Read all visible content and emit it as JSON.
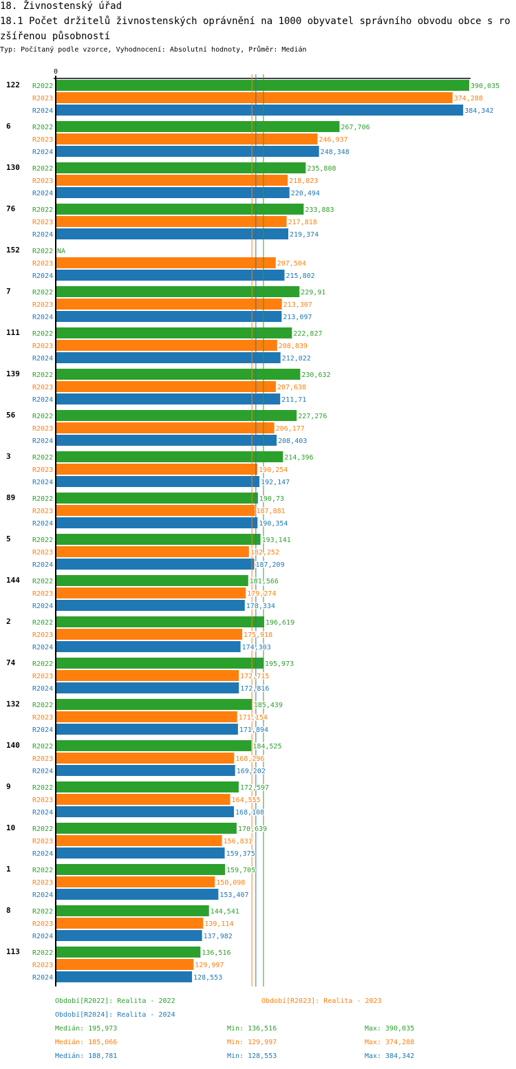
{
  "header": {
    "title": "18. Živnostenský úřad",
    "subtitle": "18.1 Počet držitelů živnostenských oprávnění na 1000 obyvatel správního obvodu obce s rozšířenou působností",
    "type_line": "Typ: Počítaný podle vzorce, Vyhodnocení: Absolutní hodnoty, Průměr: Medián"
  },
  "colors": {
    "R2022": "#2ca02c",
    "R2023": "#ff7f0e",
    "R2024": "#1f77b4"
  },
  "chart_data": {
    "type": "bar",
    "orientation": "horizontal",
    "title": "18.1 Počet držitelů živnostenských oprávnění na 1000 obyvatel správního obvodu obce s rozšířenou působností",
    "xlabel": "",
    "ylabel": "",
    "x_tick_labels": [
      "0"
    ],
    "xlim": [
      0,
      390.035
    ],
    "grid": false,
    "categories": [
      "122",
      "6",
      "130",
      "76",
      "152",
      "7",
      "111",
      "139",
      "56",
      "3",
      "89",
      "5",
      "144",
      "2",
      "74",
      "132",
      "140",
      "9",
      "10",
      "1",
      "8",
      "113"
    ],
    "series": [
      {
        "name": "R2022",
        "values": [
          390.035,
          267.706,
          235.808,
          233.883,
          null,
          229.91,
          222.827,
          230.632,
          227.276,
          214.396,
          190.73,
          193.141,
          181.566,
          196.619,
          195.973,
          185.439,
          184.525,
          172.597,
          170.639,
          159.705,
          144.541,
          136.516
        ],
        "labels": [
          "390,035",
          "267,706",
          "235,808",
          "233,883",
          "NA",
          "229,91",
          "222,827",
          "230,632",
          "227,276",
          "214,396",
          "190,73",
          "193,141",
          "181,566",
          "196,619",
          "195,973",
          "185,439",
          "184,525",
          "172,597",
          "170,639",
          "159,705",
          "144,541",
          "136,516"
        ]
      },
      {
        "name": "R2023",
        "values": [
          374.288,
          246.937,
          218.823,
          217.818,
          207.504,
          213.307,
          208.839,
          207.638,
          206.177,
          190.254,
          187.881,
          182.252,
          179.274,
          175.918,
          172.715,
          171.154,
          168.296,
          164.555,
          156.831,
          150.098,
          139.114,
          129.997
        ],
        "labels": [
          "374,288",
          "246,937",
          "218,823",
          "217,818",
          "207,504",
          "213,307",
          "208,839",
          "207,638",
          "206,177",
          "190,254",
          "187,881",
          "182,252",
          "179,274",
          "175,918",
          "172,715",
          "171,154",
          "168,296",
          "164,555",
          "156,831",
          "150,098",
          "139,114",
          "129,997"
        ]
      },
      {
        "name": "R2024",
        "values": [
          384.342,
          248.348,
          220.494,
          219.374,
          215.802,
          213.097,
          212.022,
          211.71,
          208.403,
          192.147,
          190.354,
          187.209,
          178.334,
          174.303,
          172.816,
          171.894,
          169.202,
          168.108,
          159.375,
          153.407,
          137.982,
          128.553
        ],
        "labels": [
          "384,342",
          "248,348",
          "220,494",
          "219,374",
          "215,802",
          "213,097",
          "212,022",
          "211,71",
          "208,403",
          "192,147",
          "190,354",
          "187,209",
          "178,334",
          "174,303",
          "172,816",
          "171,894",
          "169,202",
          "168,108",
          "159,375",
          "153,407",
          "137,982",
          "128,553"
        ]
      }
    ],
    "reference_lines": [
      {
        "series": "R2022",
        "type": "median",
        "value": 195.973
      },
      {
        "series": "R2023",
        "type": "median",
        "value": 185.066
      },
      {
        "series": "R2024",
        "type": "median",
        "value": 188.781
      }
    ],
    "legend": {
      "placement": "bottom",
      "entries": [
        {
          "series": "R2022",
          "label": "Období[R2022]: Realita - 2022"
        },
        {
          "series": "R2023",
          "label": "Období[R2023]: Realita - 2023"
        },
        {
          "series": "R2024",
          "label": "Období[R2024]: Realita - 2024"
        }
      ]
    },
    "stats": [
      {
        "series": "R2022",
        "median": "Medián: 195,973",
        "min": "Min: 136,516",
        "max": "Max: 390,035"
      },
      {
        "series": "R2023",
        "median": "Medián: 185,066",
        "min": "Min: 129,997",
        "max": "Max: 374,288"
      },
      {
        "series": "R2024",
        "median": "Medián: 188,781",
        "min": "Min: 128,553",
        "max": "Max: 384,342"
      }
    ]
  }
}
